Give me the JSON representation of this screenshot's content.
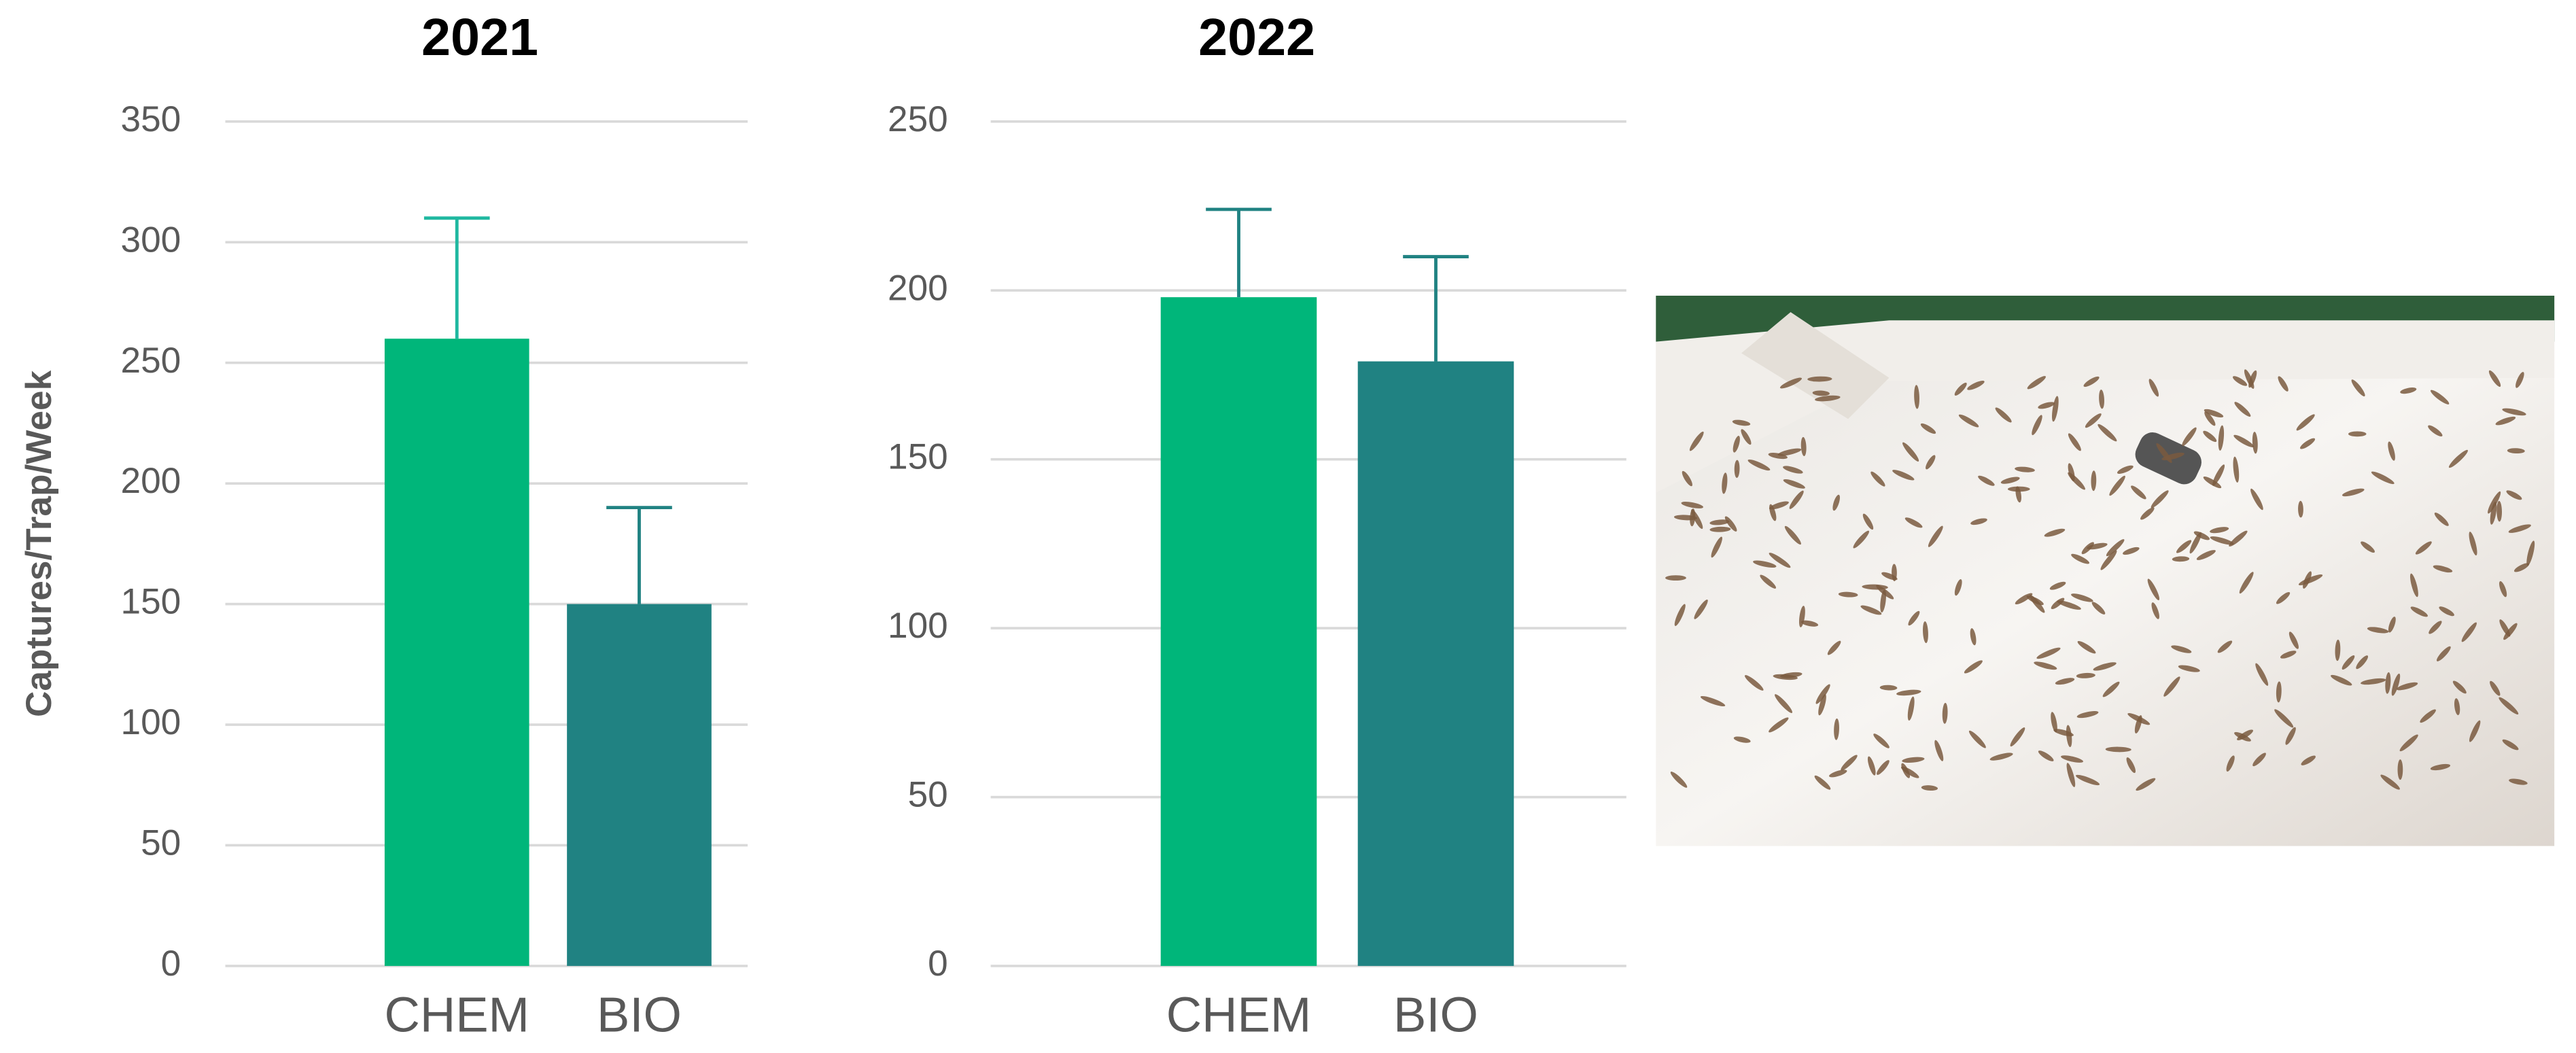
{
  "chart_data": [
    {
      "type": "bar",
      "title": "2021",
      "ylabel": "Captures/Trap/Week",
      "categories": [
        "CHEM",
        "BIO"
      ],
      "values": [
        260,
        150
      ],
      "errors": [
        50,
        40
      ],
      "colors": [
        "#00b67a",
        "#208282"
      ],
      "error_colors": [
        "#1fb8a0",
        "#208282"
      ],
      "ylim": [
        0,
        350
      ],
      "yticks": [
        0,
        50,
        100,
        150,
        200,
        250,
        300,
        350
      ],
      "grid": true
    },
    {
      "type": "bar",
      "title": "2022",
      "categories": [
        "CHEM",
        "BIO"
      ],
      "values": [
        198,
        179
      ],
      "errors": [
        26,
        31
      ],
      "colors": [
        "#00b67a",
        "#208282"
      ],
      "error_colors": [
        "#208282",
        "#208282"
      ],
      "ylim": [
        0,
        250
      ],
      "yticks": [
        0,
        50,
        100,
        150,
        200,
        250
      ],
      "grid": true
    }
  ]
}
